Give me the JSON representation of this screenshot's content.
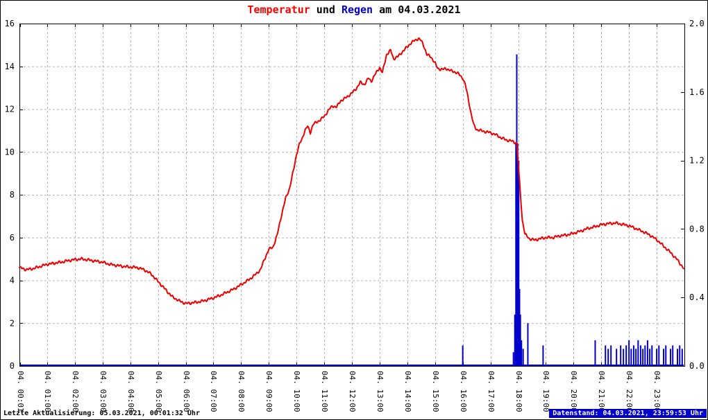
{
  "title": {
    "temperatur": "Temperatur",
    "und": " und ",
    "regen": "Regen",
    "date_suffix": " am 04.03.2021"
  },
  "footer": {
    "last_update": "Letzte Aktualisierung: 05.03.2021, 00:01:32 Uhr",
    "data_state": "Datenstand: 04.03.2021, 23:59:53 Uhr"
  },
  "colors": {
    "temperature": "#ee0000",
    "rain": "#0000cc",
    "grid": "#b4b4b4",
    "axis": "#000000",
    "footer_right_bg": "#0000cc",
    "footer_right_fg": "#ffffff"
  },
  "chart_data": {
    "type": "line+bar",
    "title": "Temperatur und Regen am 04.03.2021",
    "grid": true,
    "legend": "none",
    "x_unit": "hours",
    "x_range": [
      0,
      24
    ],
    "x_tick_hours": [
      0.0167,
      1,
      2,
      3,
      4,
      5,
      6,
      7,
      8,
      9,
      10,
      11,
      12,
      13,
      14,
      15,
      16,
      17,
      18,
      19,
      20,
      21,
      22,
      23
    ],
    "x_tick_labels": [
      "04. 00:01",
      "04. 01:00",
      "04. 02:00",
      "04. 03:00",
      "04. 04:00",
      "04. 05:00",
      "04. 06:00",
      "04. 07:00",
      "04. 08:00",
      "04. 09:00",
      "04. 10:00",
      "04. 11:00",
      "04. 12:00",
      "04. 13:00",
      "04. 14:00",
      "04. 15:00",
      "04. 16:00",
      "04. 17:00",
      "04. 18:00",
      "04. 19:00",
      "04. 20:00",
      "04. 21:00",
      "04. 22:00",
      "04. 23:00"
    ],
    "y_left": {
      "range": [
        0,
        16
      ],
      "ticks": [
        0,
        2,
        4,
        6,
        8,
        10,
        12,
        14,
        16
      ]
    },
    "y_right": {
      "range": [
        0,
        2
      ],
      "ticks": [
        "0.0",
        "0.4",
        "0.8",
        "1.2",
        "1.6",
        "2.0"
      ]
    },
    "series": [
      {
        "name": "Temperatur",
        "type": "line",
        "axis": "left",
        "color": "#ee0000",
        "points": [
          [
            0.0,
            4.6
          ],
          [
            0.25,
            4.5
          ],
          [
            0.5,
            4.55
          ],
          [
            0.75,
            4.65
          ],
          [
            1.0,
            4.75
          ],
          [
            1.25,
            4.8
          ],
          [
            1.5,
            4.85
          ],
          [
            1.75,
            4.92
          ],
          [
            2.0,
            4.97
          ],
          [
            2.25,
            5.0
          ],
          [
            2.5,
            4.95
          ],
          [
            2.75,
            4.9
          ],
          [
            3.0,
            4.85
          ],
          [
            3.25,
            4.75
          ],
          [
            3.5,
            4.7
          ],
          [
            3.75,
            4.65
          ],
          [
            4.0,
            4.62
          ],
          [
            4.25,
            4.6
          ],
          [
            4.5,
            4.5
          ],
          [
            4.75,
            4.3
          ],
          [
            5.0,
            3.95
          ],
          [
            5.25,
            3.6
          ],
          [
            5.5,
            3.25
          ],
          [
            5.75,
            3.05
          ],
          [
            6.0,
            2.92
          ],
          [
            6.25,
            2.95
          ],
          [
            6.5,
            3.0
          ],
          [
            6.75,
            3.08
          ],
          [
            7.0,
            3.18
          ],
          [
            7.25,
            3.3
          ],
          [
            7.5,
            3.45
          ],
          [
            7.75,
            3.6
          ],
          [
            8.0,
            3.8
          ],
          [
            8.25,
            4.0
          ],
          [
            8.5,
            4.25
          ],
          [
            8.7,
            4.5
          ],
          [
            8.85,
            5.0
          ],
          [
            9.0,
            5.45
          ],
          [
            9.15,
            5.55
          ],
          [
            9.3,
            6.1
          ],
          [
            9.45,
            7.0
          ],
          [
            9.6,
            7.8
          ],
          [
            9.75,
            8.3
          ],
          [
            9.9,
            9.2
          ],
          [
            10.0,
            9.9
          ],
          [
            10.1,
            10.35
          ],
          [
            10.2,
            10.6
          ],
          [
            10.3,
            11.0
          ],
          [
            10.4,
            11.2
          ],
          [
            10.5,
            10.9
          ],
          [
            10.6,
            11.3
          ],
          [
            10.75,
            11.4
          ],
          [
            10.9,
            11.55
          ],
          [
            11.0,
            11.65
          ],
          [
            11.15,
            11.95
          ],
          [
            11.3,
            12.15
          ],
          [
            11.45,
            12.1
          ],
          [
            11.6,
            12.4
          ],
          [
            11.75,
            12.5
          ],
          [
            11.9,
            12.65
          ],
          [
            12.0,
            12.75
          ],
          [
            12.15,
            12.95
          ],
          [
            12.3,
            13.25
          ],
          [
            12.45,
            13.15
          ],
          [
            12.6,
            13.45
          ],
          [
            12.7,
            13.3
          ],
          [
            12.85,
            13.65
          ],
          [
            13.0,
            13.95
          ],
          [
            13.1,
            13.7
          ],
          [
            13.25,
            14.55
          ],
          [
            13.4,
            14.75
          ],
          [
            13.5,
            14.35
          ],
          [
            13.65,
            14.45
          ],
          [
            13.8,
            14.65
          ],
          [
            13.95,
            14.85
          ],
          [
            14.1,
            15.05
          ],
          [
            14.25,
            15.2
          ],
          [
            14.4,
            15.3
          ],
          [
            14.5,
            15.2
          ],
          [
            14.6,
            14.95
          ],
          [
            14.7,
            14.55
          ],
          [
            14.85,
            14.45
          ],
          [
            15.0,
            14.15
          ],
          [
            15.1,
            13.9
          ],
          [
            15.25,
            13.85
          ],
          [
            15.4,
            13.9
          ],
          [
            15.55,
            13.8
          ],
          [
            15.7,
            13.75
          ],
          [
            15.85,
            13.65
          ],
          [
            16.0,
            13.45
          ],
          [
            16.1,
            13.1
          ],
          [
            16.2,
            12.5
          ],
          [
            16.3,
            11.8
          ],
          [
            16.4,
            11.25
          ],
          [
            16.5,
            11.05
          ],
          [
            16.65,
            11.0
          ],
          [
            16.8,
            10.95
          ],
          [
            17.0,
            10.9
          ],
          [
            17.2,
            10.8
          ],
          [
            17.4,
            10.65
          ],
          [
            17.6,
            10.55
          ],
          [
            17.8,
            10.5
          ],
          [
            17.95,
            10.4
          ],
          [
            18.05,
            8.6
          ],
          [
            18.15,
            6.8
          ],
          [
            18.25,
            6.15
          ],
          [
            18.4,
            5.95
          ],
          [
            18.6,
            5.88
          ],
          [
            18.8,
            5.95
          ],
          [
            19.0,
            6.0
          ],
          [
            19.25,
            6.0
          ],
          [
            19.5,
            6.08
          ],
          [
            19.75,
            6.12
          ],
          [
            20.0,
            6.2
          ],
          [
            20.25,
            6.3
          ],
          [
            20.5,
            6.42
          ],
          [
            20.75,
            6.5
          ],
          [
            21.0,
            6.6
          ],
          [
            21.25,
            6.65
          ],
          [
            21.5,
            6.68
          ],
          [
            21.75,
            6.62
          ],
          [
            22.0,
            6.55
          ],
          [
            22.25,
            6.42
          ],
          [
            22.5,
            6.28
          ],
          [
            22.75,
            6.12
          ],
          [
            23.0,
            5.9
          ],
          [
            23.25,
            5.6
          ],
          [
            23.5,
            5.3
          ],
          [
            23.75,
            4.95
          ],
          [
            23.98,
            4.55
          ]
        ]
      },
      {
        "name": "Regen",
        "type": "bar",
        "axis": "right",
        "color": "#0000cc",
        "points": [
          [
            16.0,
            0.12
          ],
          [
            17.83,
            0.08
          ],
          [
            17.88,
            0.3
          ],
          [
            17.92,
            1.3
          ],
          [
            17.95,
            1.82
          ],
          [
            17.98,
            1.3
          ],
          [
            18.02,
            1.2
          ],
          [
            18.05,
            0.45
          ],
          [
            18.08,
            0.3
          ],
          [
            18.12,
            0.15
          ],
          [
            18.18,
            0.1
          ],
          [
            18.35,
            0.25
          ],
          [
            18.9,
            0.12
          ],
          [
            20.78,
            0.15
          ],
          [
            21.15,
            0.12
          ],
          [
            21.25,
            0.1
          ],
          [
            21.35,
            0.12
          ],
          [
            21.55,
            0.1
          ],
          [
            21.7,
            0.12
          ],
          [
            21.8,
            0.1
          ],
          [
            21.9,
            0.12
          ],
          [
            22.0,
            0.15
          ],
          [
            22.08,
            0.1
          ],
          [
            22.17,
            0.12
          ],
          [
            22.25,
            0.1
          ],
          [
            22.33,
            0.15
          ],
          [
            22.42,
            0.12
          ],
          [
            22.5,
            0.1
          ],
          [
            22.58,
            0.12
          ],
          [
            22.67,
            0.15
          ],
          [
            22.75,
            0.1
          ],
          [
            22.83,
            0.12
          ],
          [
            23.0,
            0.1
          ],
          [
            23.08,
            0.12
          ],
          [
            23.25,
            0.1
          ],
          [
            23.33,
            0.12
          ],
          [
            23.5,
            0.1
          ],
          [
            23.58,
            0.12
          ],
          [
            23.75,
            0.1
          ],
          [
            23.83,
            0.12
          ],
          [
            23.92,
            0.1
          ]
        ]
      }
    ]
  }
}
